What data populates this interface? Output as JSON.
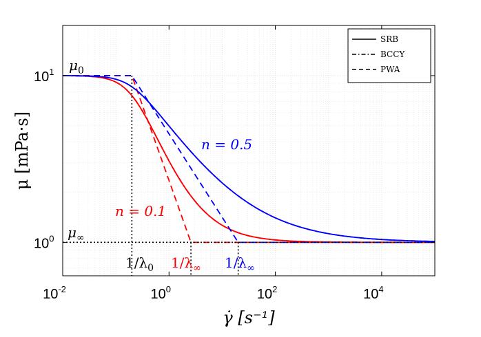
{
  "chart_data": {
    "type": "line",
    "xscale": "log",
    "yscale": "log",
    "xlim": [
      0.01,
      100000
    ],
    "ylim": [
      0.63,
      20
    ],
    "xlabel": "γ̇ [s⁻¹]",
    "ylabel": "μ [mPa·s]",
    "xticks": [
      {
        "base": "10",
        "exp": "-2",
        "value": 0.01
      },
      {
        "base": "10",
        "exp": "0",
        "value": 1
      },
      {
        "base": "10",
        "exp": "2",
        "value": 100
      },
      {
        "base": "10",
        "exp": "4",
        "value": 10000
      }
    ],
    "yticks": [
      {
        "base": "10",
        "exp": "1",
        "value": 10
      },
      {
        "base": "10",
        "exp": "0",
        "value": 1
      }
    ],
    "grid": true,
    "params": {
      "mu0": 10,
      "muinf": 1,
      "lambda0": 5,
      "lambdainf_n01": 0.4,
      "lambdainf_n05": 0.05
    },
    "legend": {
      "position": "top-right",
      "entries": [
        {
          "label": "SRB",
          "style": "solid"
        },
        {
          "label": "BCCY",
          "style": "dashdot"
        },
        {
          "label": "PWA",
          "style": "dashed"
        }
      ]
    },
    "series": [
      {
        "name": "n = 0.1 SRB",
        "n": 0.1,
        "model": "SRB",
        "color": "#ff0000",
        "style": "solid"
      },
      {
        "name": "n = 0.1 BCCY",
        "n": 0.1,
        "model": "BCCY",
        "color": "#ff0000",
        "style": "dashdot"
      },
      {
        "name": "n = 0.1 PWA",
        "n": 0.1,
        "model": "PWA",
        "color": "#ff0000",
        "style": "dashed"
      },
      {
        "name": "n = 0.5 SRB",
        "n": 0.5,
        "model": "SRB",
        "color": "#0000ff",
        "style": "solid"
      },
      {
        "name": "n = 0.5 BCCY",
        "n": 0.5,
        "model": "BCCY",
        "color": "#0000ff",
        "style": "dashdot"
      },
      {
        "name": "n = 0.5 PWA",
        "n": 0.5,
        "model": "PWA",
        "color": "#0000ff",
        "style": "dashed"
      }
    ],
    "annotations": {
      "mu0": "μ",
      "mu0_sub": "0",
      "muinf": "μ",
      "muinf_sub": "∞",
      "n05": "n = 0.5",
      "n01": "n = 0.1",
      "inv_lambda0": "1/λ",
      "inv_lambda0_sub": "0",
      "inv_lambdainf": "1/λ",
      "inv_lambdainf_sub": "∞",
      "color_n01": "#ff0000",
      "color_n05": "#0000ff"
    }
  }
}
